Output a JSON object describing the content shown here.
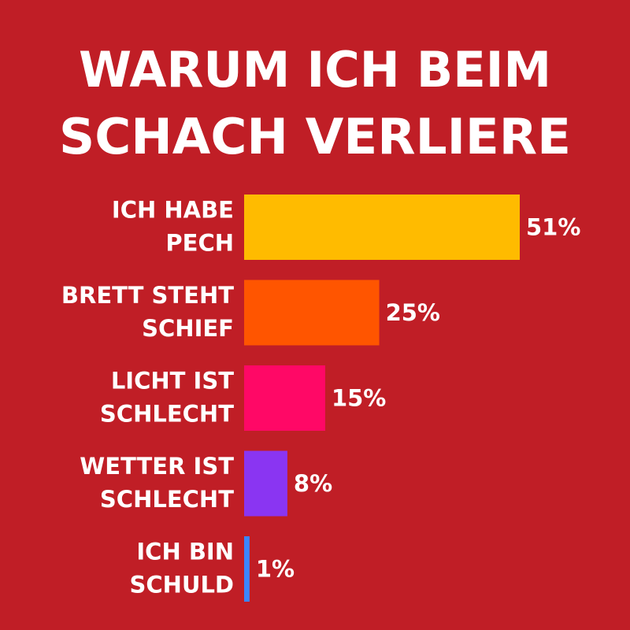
{
  "chart_data": {
    "type": "bar",
    "orientation": "horizontal",
    "title": [
      "WARUM ICH BEIM",
      "SCHACH VERLIERE"
    ],
    "categories": [
      "ICH HABE PECH",
      "BRETT STEHT SCHIEF",
      "LICHT IST SCHLECHT",
      "WETTER IST SCHLECHT",
      "ICH BIN SCHULD"
    ],
    "values": [
      51,
      25,
      15,
      8,
      1
    ],
    "value_labels": [
      "51%",
      "25%",
      "15%",
      "8%",
      "1%"
    ],
    "colors": [
      "#ffbb00",
      "#ff5500",
      "#ff0866",
      "#8a35f2",
      "#3a86ff"
    ]
  }
}
